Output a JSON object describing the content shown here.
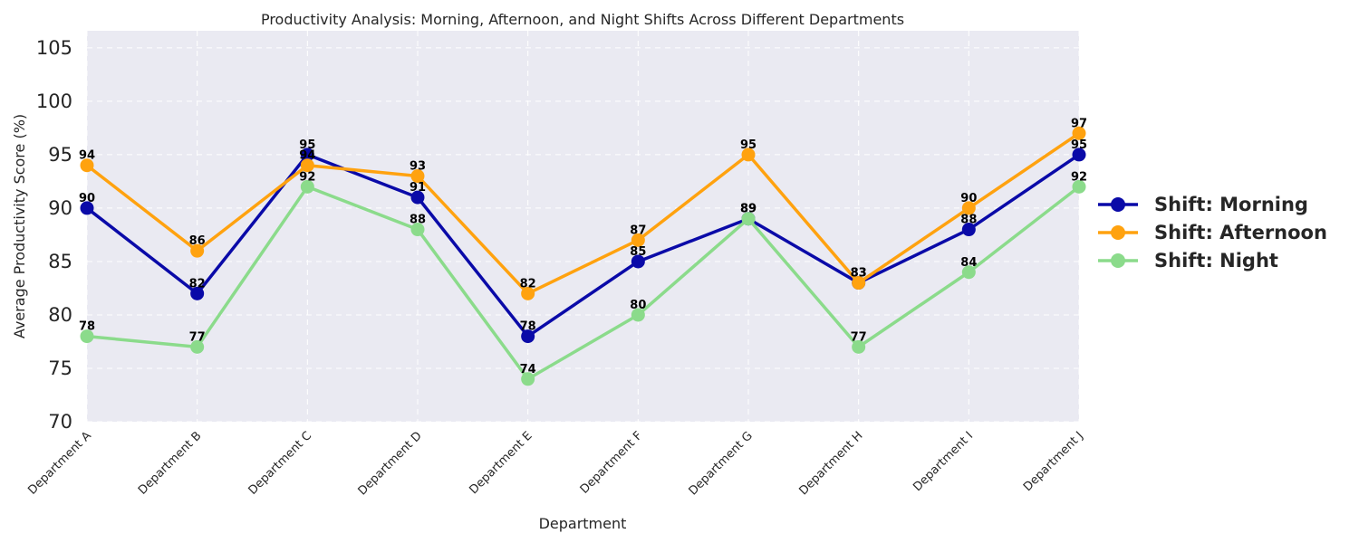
{
  "chart_data": {
    "type": "line",
    "title": "Productivity Analysis: Morning, Afternoon, and Night Shifts Across Different Departments",
    "xlabel": "Department",
    "ylabel": "Average Productivity Score (%)",
    "ylim": [
      70,
      106.6
    ],
    "yticks": [
      70,
      75,
      80,
      85,
      90,
      95,
      100,
      105
    ],
    "grid": true,
    "legend_position": "right",
    "categories": [
      "Department A",
      "Department B",
      "Department C",
      "Department D",
      "Department E",
      "Department F",
      "Department G",
      "Department H",
      "Department I",
      "Department J"
    ],
    "series": [
      {
        "name": "Shift: Morning",
        "color": "#0a0aa8",
        "values": [
          90,
          82,
          95,
          91,
          78,
          85,
          89,
          83,
          88,
          95
        ]
      },
      {
        "name": "Shift: Afternoon",
        "color": "#ffa20f",
        "values": [
          94,
          86,
          94,
          93,
          82,
          87,
          95,
          83,
          90,
          97
        ]
      },
      {
        "name": "Shift: Night",
        "color": "#8bdb8b",
        "values": [
          78,
          77,
          92,
          88,
          74,
          80,
          89,
          77,
          84,
          92
        ]
      }
    ]
  }
}
